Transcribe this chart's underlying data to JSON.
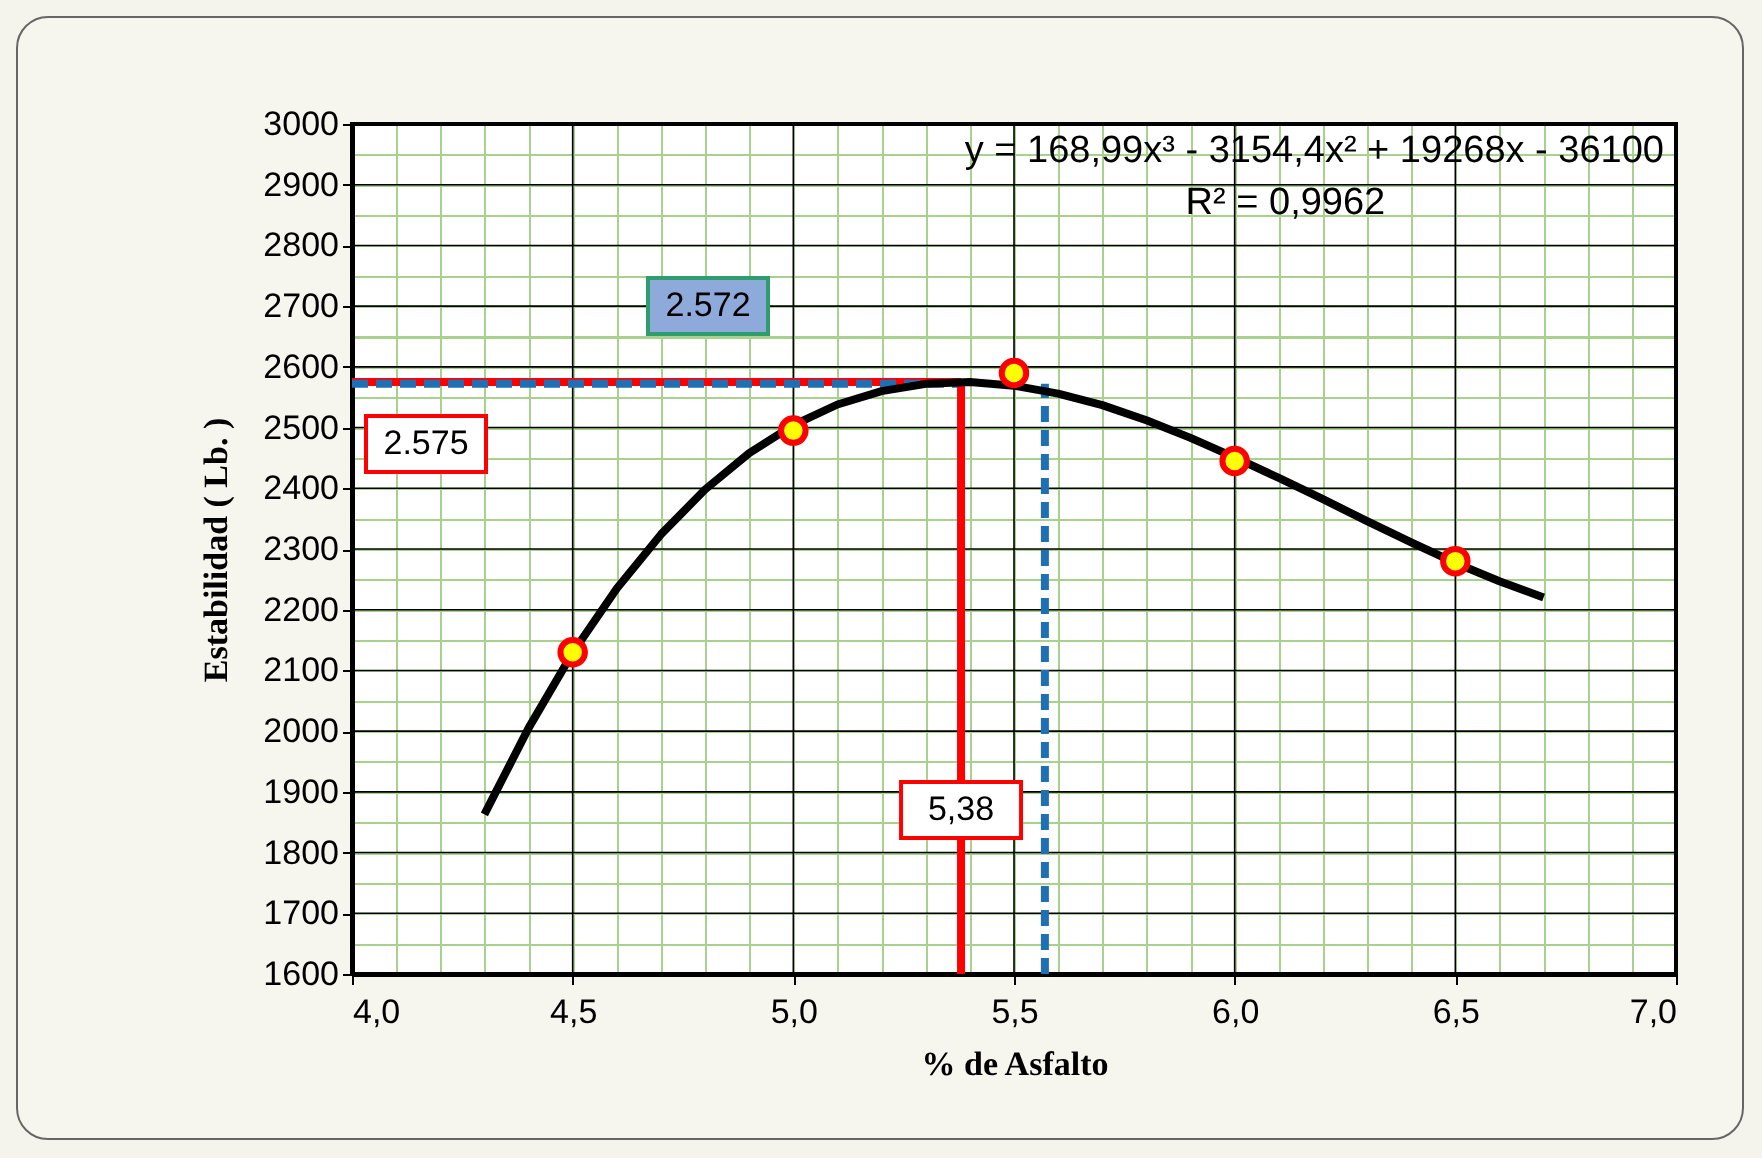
{
  "chart_data": {
    "type": "scatter",
    "xlabel": "% de Asfalto",
    "ylabel": "Estabilidad ( Lb. )",
    "xlim": [
      4.0,
      7.0
    ],
    "ylim": [
      1600,
      3000
    ],
    "xticks": [
      {
        "value": 4.0,
        "label": "4,0"
      },
      {
        "value": 4.5,
        "label": "4,5"
      },
      {
        "value": 5.0,
        "label": "5,0"
      },
      {
        "value": 5.5,
        "label": "5,5"
      },
      {
        "value": 6.0,
        "label": "6,0"
      },
      {
        "value": 6.5,
        "label": "6,5"
      },
      {
        "value": 7.0,
        "label": "7,0"
      }
    ],
    "yticks": [
      1600,
      1700,
      1800,
      1900,
      2000,
      2100,
      2200,
      2300,
      2400,
      2500,
      2600,
      2700,
      2800,
      2900,
      3000
    ],
    "grid": true,
    "series": [
      {
        "type": "line",
        "color": "#000000",
        "line_style": "solid",
        "x": [
          4.3,
          4.4,
          4.5,
          4.6,
          4.7,
          4.8,
          4.9,
          5.0,
          5.1,
          5.2,
          5.3,
          5.4,
          5.5,
          5.6,
          5.7,
          5.8,
          5.9,
          6.0,
          6.1,
          6.2,
          6.3,
          6.4,
          6.5,
          6.6,
          6.7
        ],
        "values": [
          1863,
          2005,
          2129,
          2235,
          2324,
          2398,
          2458,
          2504,
          2538,
          2560,
          2572,
          2575,
          2569,
          2556,
          2537,
          2512,
          2483,
          2451,
          2417,
          2382,
          2346,
          2311,
          2277,
          2247,
          2220
        ]
      },
      {
        "type": "line",
        "color": "#ff0000",
        "line_style": "solid",
        "x": [
          4.0,
          5.38
        ],
        "values": [
          2575,
          2575
        ]
      },
      {
        "type": "line",
        "color": "#1f6fb4",
        "line_style": "dashed",
        "x": [
          4.0,
          5.38
        ],
        "values": [
          2572,
          2572
        ]
      },
      {
        "type": "line",
        "color": "#ff0000",
        "line_style": "solid",
        "x": [
          5.38,
          5.38
        ],
        "values": [
          1600,
          2575
        ]
      },
      {
        "type": "line",
        "color": "#1f6fb4",
        "line_style": "dashed",
        "x": [
          5.57,
          5.57
        ],
        "values": [
          1600,
          2572
        ]
      },
      {
        "type": "scatter",
        "color": "#ffff00",
        "x": [
          4.5,
          5.0,
          5.5,
          6.0,
          6.5
        ],
        "values": [
          2130,
          2495,
          2590,
          2445,
          2280
        ]
      }
    ],
    "annotations": [
      "y = 168,99x³ - 3154,4x² + 19268x - 36100",
      "R² = 0,9962",
      "2.572",
      "2.575",
      {
        "text": "5,38",
        "x": 5.38,
        "y": 1870
      }
    ]
  }
}
